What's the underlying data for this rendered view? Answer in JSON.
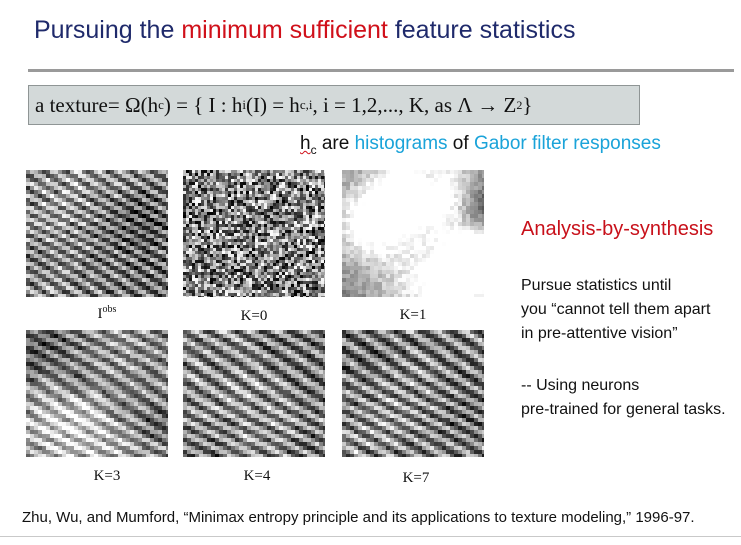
{
  "slide": {
    "title_part1": "Pursuing the ",
    "title_accent": "minimum sufficient",
    "title_part2": " feature statistics",
    "title_color": "#1f2a6b",
    "accent_color": "#d0101a"
  },
  "formula": {
    "lhs": "a texture",
    "eq1": " = Ω(h",
    "sub_c": "c",
    "eq2": ") = { I :  h",
    "sub_i": "i",
    "eq3": " (I) = h",
    "sub_ci": "c,i",
    "eq4": "  , i = 1,2,..., K, as Λ → Z",
    "sup_2": "2",
    "eq5": " }"
  },
  "hc_line": {
    "hc": "h",
    "hc_sub": "c",
    "are": " are ",
    "histograms": "histograms",
    "of": " of ",
    "gabor": "Gabor filter responses",
    "cyan_color": "#1aa3d9"
  },
  "textures": [
    {
      "label": "I",
      "label_sup": "obs",
      "kind": "stripe-fine"
    },
    {
      "label": "K=0",
      "label_sup": "",
      "kind": "noise"
    },
    {
      "label": "K=1",
      "label_sup": "",
      "kind": "blob"
    },
    {
      "label": "K=3",
      "label_sup": "",
      "kind": "stripe-blob"
    },
    {
      "label": "K=4",
      "label_sup": "",
      "kind": "stripe"
    },
    {
      "label": "K=7",
      "label_sup": "",
      "kind": "stripe"
    }
  ],
  "sidebar": {
    "heading": "Analysis-by-synthesis",
    "para1_line1": "Pursue statistics until",
    "para1_line2": "you “cannot tell them apart",
    "para1_line3": "in pre-attentive vision”",
    "para2_line1": "-- Using neurons",
    "para2_line2": "pre-trained for general tasks."
  },
  "citation": "Zhu, Wu, and Mumford,  “Minimax entropy principle and its applications to texture modeling,” 1996-97."
}
